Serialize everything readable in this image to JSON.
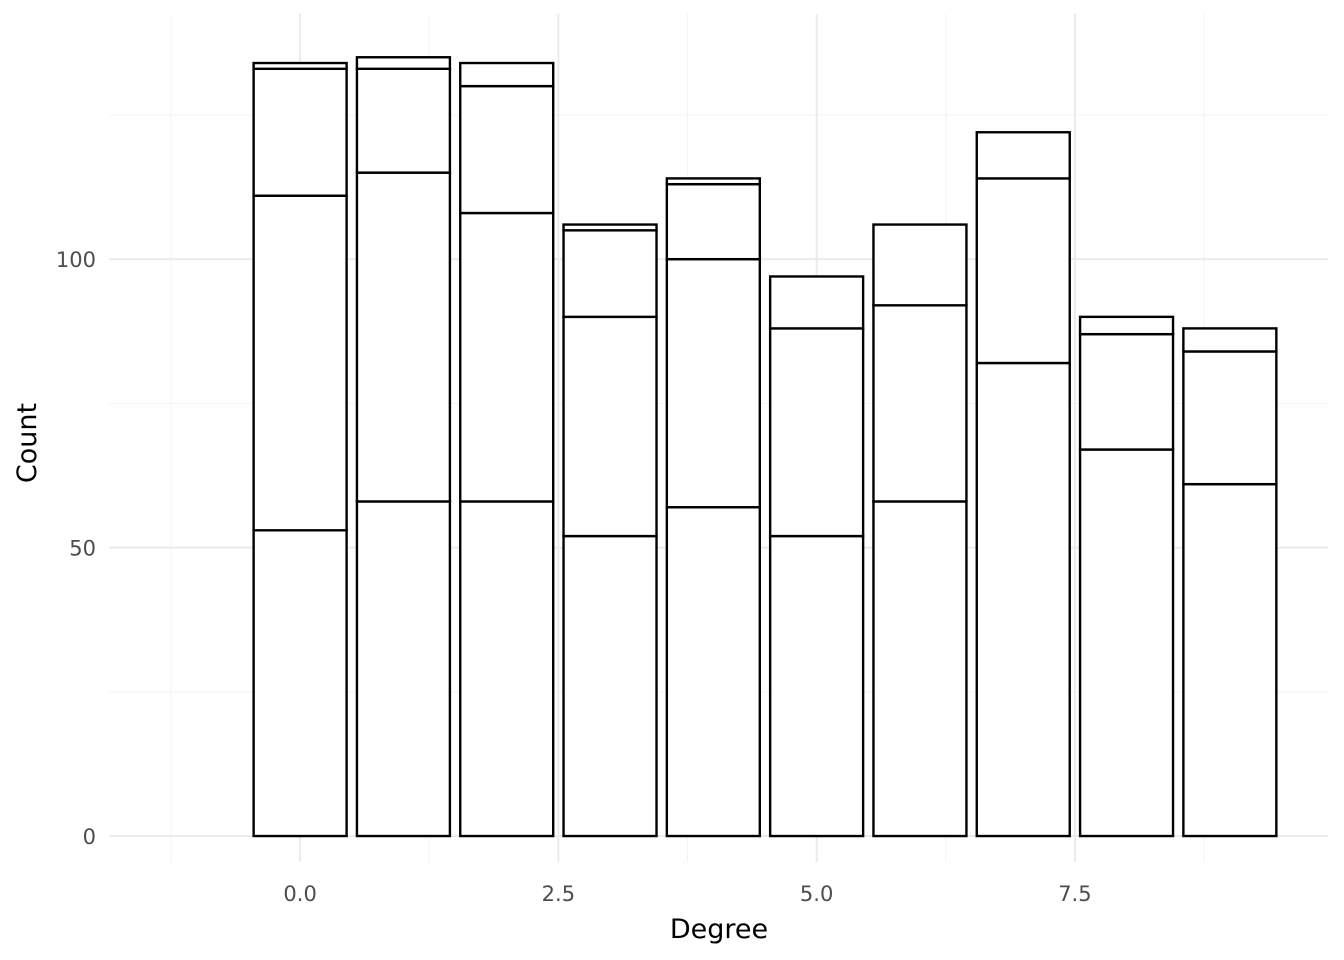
{
  "chart_data": {
    "type": "bar",
    "stacked": true,
    "xlabel": "Degree",
    "ylabel": "Count",
    "x": [
      0,
      1,
      2,
      3,
      4,
      5,
      6,
      7,
      8,
      9
    ],
    "stack_tops": [
      [
        53,
        111,
        133,
        134
      ],
      [
        58,
        115,
        133,
        135
      ],
      [
        58,
        108,
        130,
        134
      ],
      [
        52,
        90,
        105,
        106
      ],
      [
        57,
        100,
        113,
        114
      ],
      [
        52,
        88,
        97
      ],
      [
        58,
        92,
        106
      ],
      [
        82,
        114,
        122
      ],
      [
        67,
        87,
        90
      ],
      [
        61,
        84,
        88
      ]
    ],
    "xlim": [
      -1.85,
      9.95
    ],
    "ylim": [
      -4.5,
      142.5
    ],
    "x_ticks": [
      0.0,
      2.5,
      5.0,
      7.5
    ],
    "x_tick_labels": [
      "0.0",
      "2.5",
      "5.0",
      "7.5"
    ],
    "y_ticks": [
      0,
      50,
      100
    ],
    "y_tick_labels": [
      "0",
      "50",
      "100"
    ],
    "bar_width": 0.9,
    "grid": true,
    "bar_fill": "#ffffff",
    "bar_outline": "#000000",
    "grid_color": "#ebebeb"
  }
}
